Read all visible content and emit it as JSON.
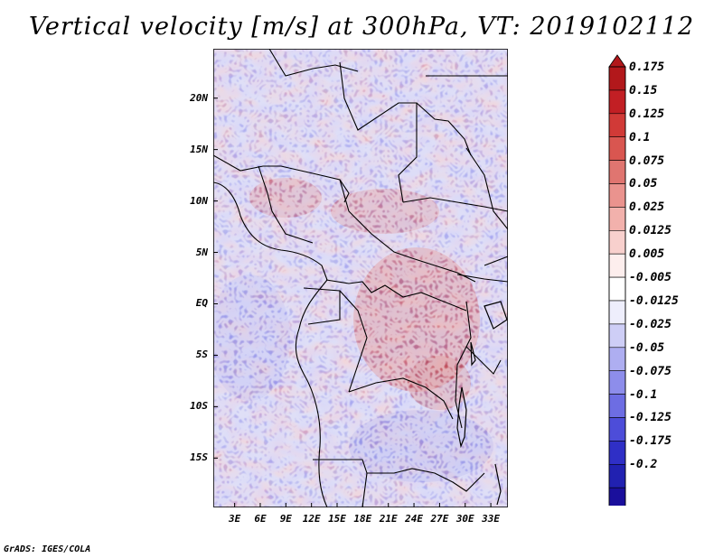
{
  "title": "Vertical velocity [m/s] at 300hPa, VT: 2019102112",
  "map": {
    "region": "Central Africa",
    "variable": "Vertical velocity",
    "units": "m/s",
    "level": "300hPa",
    "valid_time": "2019102112",
    "lat_labels": [
      "20N",
      "15N",
      "10N",
      "5N",
      "EQ",
      "5S",
      "10S",
      "15S"
    ],
    "lat_values": [
      20,
      15,
      10,
      5,
      0,
      -5,
      -10,
      -15
    ],
    "lon_labels": [
      "3E",
      "6E",
      "9E",
      "12E",
      "15E",
      "18E",
      "21E",
      "24E",
      "27E",
      "30E",
      "33E"
    ],
    "lon_values": [
      3,
      6,
      9,
      12,
      15,
      18,
      21,
      24,
      27,
      30,
      33
    ],
    "lat_range": [
      -19.8,
      24.8
    ],
    "lon_range": [
      0.5,
      35.0
    ]
  },
  "colorbar": {
    "labels": [
      "0.175",
      "0.15",
      "0.125",
      "0.1",
      "0.075",
      "0.05",
      "0.025",
      "0.0125",
      "0.005",
      "-0.005",
      "-0.0125",
      "-0.025",
      "-0.05",
      "-0.075",
      "-0.1",
      "-0.125",
      "-0.175",
      "-0.2"
    ],
    "colors": [
      "#b2181b",
      "#c21f24",
      "#d13a37",
      "#d95650",
      "#e07570",
      "#ea938e",
      "#f2b1ac",
      "#f8d0cd",
      "#fdeeed",
      "#ffffff",
      "#eeeefc",
      "#cecef6",
      "#aeaef1",
      "#8d8deb",
      "#6d6de3",
      "#4d4dd9",
      "#2f2fc6",
      "#2121b1",
      "#1a0f9c"
    ]
  },
  "footer": "GrADS: IGES/COLA"
}
